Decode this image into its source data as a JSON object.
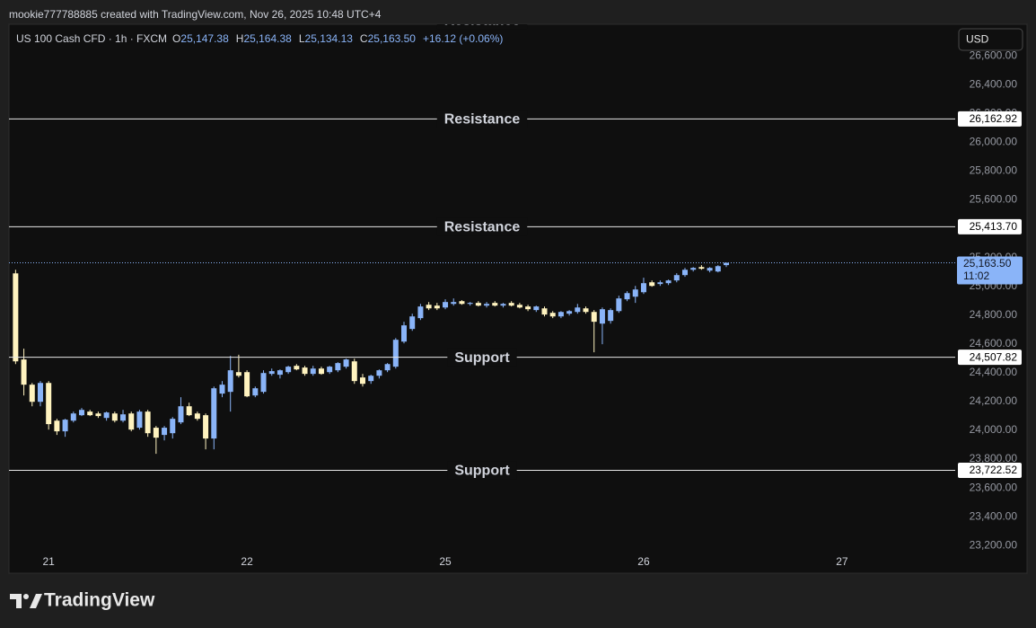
{
  "header": {
    "credit": "mookie777788885 created with TradingView.com, Nov 26, 2025 10:48 UTC+4",
    "brand": "TradingView",
    "currency": "USD"
  },
  "chart_data": {
    "type": "candlestick",
    "symbol": "US 100 Cash CFD · 1h · FXCM",
    "legend": [
      {
        "label": "O",
        "value": "25,147.38"
      },
      {
        "label": "H",
        "value": "25,164.38"
      },
      {
        "label": "L",
        "value": "25,134.13"
      },
      {
        "label": "C",
        "value": "25,163.50"
      }
    ],
    "change": "+16.12 (+0.06%)",
    "up_color": "#8ab4f8",
    "down_color": "#fff3bf",
    "open": [
      25090,
      24492,
      24317,
      24198,
      24329,
      24067,
      23993,
      24067,
      24105,
      24130,
      24117,
      24086,
      24117,
      24067,
      24117,
      24018,
      24130,
      24018,
      23968,
      23980,
      24055,
      24167,
      24117,
      24105,
      23943,
      24255,
      24267,
      24404,
      24404,
      24242,
      24267,
      24392,
      24386,
      24404,
      24448,
      24436,
      24392,
      24429,
      24404,
      24417,
      24442,
      24479,
      24367,
      24342,
      24379,
      24417,
      24442,
      24616,
      24704,
      24779,
      24872,
      24866,
      24853,
      24878,
      24897,
      24878,
      24885,
      24866,
      24885,
      24866,
      24885,
      24872,
      24860,
      24835,
      24847,
      24816,
      24791,
      24810,
      24822,
      24847,
      24822,
      24741,
      24760,
      24828,
      24910,
      24928,
      24959,
      25028,
      25016,
      25022,
      25041,
      25078,
      25115,
      25134,
      25109,
      25103,
      25147.38
    ],
    "high": [
      25115,
      24567,
      24329,
      24342,
      24342,
      24080,
      24080,
      24130,
      24155,
      24142,
      24130,
      24130,
      24130,
      24142,
      24130,
      24142,
      24142,
      24030,
      24030,
      24092,
      24230,
      24192,
      24130,
      24117,
      24304,
      24342,
      24517,
      24525,
      24417,
      24304,
      24417,
      24429,
      24423,
      24448,
      24460,
      24448,
      24448,
      24442,
      24448,
      24473,
      24498,
      24498,
      24392,
      24386,
      24423,
      24467,
      24641,
      24754,
      24810,
      24878,
      24891,
      24885,
      24910,
      24916,
      24904,
      24891,
      24897,
      24891,
      24897,
      24885,
      24897,
      24885,
      24872,
      24866,
      24860,
      24828,
      24828,
      24835,
      24878,
      24860,
      24835,
      24853,
      24847,
      24935,
      24966,
      25003,
      25060,
      25041,
      25041,
      25047,
      25091,
      25128,
      25134,
      25147,
      25134,
      25147,
      25164.38
    ],
    "low": [
      24460,
      24242,
      24167,
      24167,
      24005,
      23968,
      23955,
      24055,
      24099,
      24099,
      24086,
      24067,
      24055,
      24055,
      23993,
      24005,
      23955,
      23837,
      23930,
      23943,
      24043,
      24099,
      24067,
      23868,
      23868,
      24230,
      24130,
      24367,
      24230,
      24230,
      24255,
      24379,
      24360,
      24392,
      24417,
      24379,
      24379,
      24386,
      24392,
      24404,
      24429,
      24323,
      24304,
      24323,
      24360,
      24404,
      24429,
      24604,
      24691,
      24766,
      24835,
      24835,
      24841,
      24866,
      24872,
      24866,
      24860,
      24853,
      24860,
      24853,
      24860,
      24847,
      24828,
      24822,
      24791,
      24779,
      24779,
      24797,
      24810,
      24810,
      24542,
      24598,
      24741,
      24816,
      24897,
      24885,
      24947,
      24997,
      25003,
      25009,
      25028,
      25066,
      25103,
      25115,
      25097,
      25097,
      25134.13
    ],
    "close": [
      24479,
      24317,
      24198,
      24329,
      24043,
      23993,
      24074,
      24117,
      24142,
      24105,
      24099,
      24124,
      24067,
      24111,
      24005,
      24130,
      23980,
      23949,
      24018,
      24080,
      24167,
      24105,
      24080,
      23943,
      24292,
      24317,
      24417,
      24379,
      24236,
      24292,
      24398,
      24411,
      24417,
      24442,
      24423,
      24392,
      24429,
      24392,
      24442,
      24467,
      24492,
      24342,
      24323,
      24379,
      24417,
      24460,
      24629,
      24729,
      24791,
      24860,
      24847,
      24847,
      24891,
      24891,
      24878,
      24885,
      24866,
      24878,
      24866,
      24878,
      24866,
      24853,
      24841,
      24860,
      24804,
      24791,
      24822,
      24828,
      24853,
      24822,
      24754,
      24841,
      24835,
      24916,
      24953,
      24978,
      25022,
      25003,
      25028,
      25041,
      25078,
      25115,
      25128,
      25122,
      25128,
      25140,
      25163.5
    ],
    "xlim": [
      -0.8,
      113.7
    ],
    "xticks": [
      {
        "value": 4,
        "label": "21"
      },
      {
        "value": 28,
        "label": "22"
      },
      {
        "value": 52,
        "label": "25"
      },
      {
        "value": 76,
        "label": "26"
      },
      {
        "value": 100,
        "label": "27"
      }
    ],
    "ylim": [
      23170,
      26820
    ],
    "yticks": [
      {
        "value": 23200,
        "label": "23,200.00"
      },
      {
        "value": 23400,
        "label": "23,400.00"
      },
      {
        "value": 23600,
        "label": "23,600.00"
      },
      {
        "value": 23800,
        "label": "23,800.00"
      },
      {
        "value": 24000,
        "label": "24,000.00"
      },
      {
        "value": 24200,
        "label": "24,200.00"
      },
      {
        "value": 24400,
        "label": "24,400.00"
      },
      {
        "value": 24600,
        "label": "24,600.00"
      },
      {
        "value": 24800,
        "label": "24,800.00"
      },
      {
        "value": 25000,
        "label": "25,000.00"
      },
      {
        "value": 25200,
        "label": "25,200.00"
      },
      {
        "value": 25400,
        "label": "25,400.00"
      },
      {
        "value": 25600,
        "label": "25,600.00"
      },
      {
        "value": 25800,
        "label": "25,800.00"
      },
      {
        "value": 26000,
        "label": "26,000.00"
      },
      {
        "value": 26200,
        "label": "26,200.00"
      },
      {
        "value": 26400,
        "label": "26,400.00"
      },
      {
        "value": 26600,
        "label": "26,600.00"
      }
    ],
    "levels": [
      {
        "value": 26850,
        "name": "Resistance"
      },
      {
        "value": 26162.92,
        "label": "26,162.92",
        "name": "Resistance"
      },
      {
        "value": 25413.7,
        "label": "25,413.70",
        "name": "Resistance"
      },
      {
        "value": 24507.82,
        "label": "24,507.82",
        "name": "Support"
      },
      {
        "value": 23722.52,
        "label": "23,722.52",
        "name": "Support"
      }
    ],
    "last_price": {
      "value": 25163.5,
      "label": "25,163.50",
      "countdown": "11:02"
    }
  }
}
